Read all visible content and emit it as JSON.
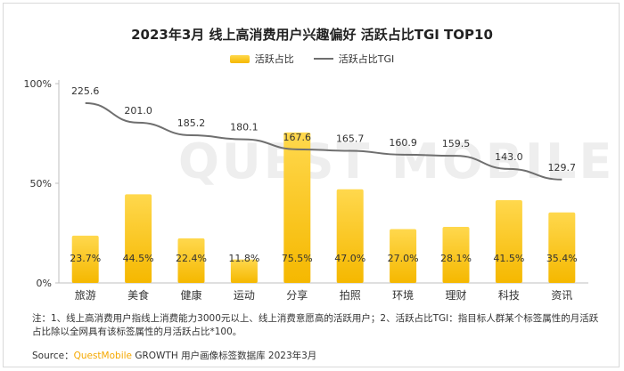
{
  "title": "2023年3月 线上高消费用户兴趣偏好 活跃占比TGI TOP10",
  "watermark": "QUEST MOBILE",
  "legend": {
    "bar_label": "活跃占比",
    "line_label": "活跃占比TGI"
  },
  "note": "注：1、线上高消费用户指线上消费能力3000元以上、线上消费意愿高的活跃用户；2、活跃占比TGI：指目标人群某个标签属性的月活跃占比除以全网具有该标签属性的月活跃占比*100。",
  "source": {
    "prefix": "Source：",
    "brand": "QuestMobile",
    "text": " GROWTH 用户画像标签数据库 2023年3月"
  },
  "colors": {
    "bar_top": "#ffd84d",
    "bar_bottom": "#f5b800",
    "line": "#6f6f6f",
    "axis": "#bfbfbf"
  },
  "chart_data": {
    "type": "bar",
    "categories": [
      "旅游",
      "美食",
      "健康",
      "运动",
      "分享",
      "拍照",
      "环境",
      "理财",
      "科技",
      "资讯"
    ],
    "series": [
      {
        "name": "活跃占比",
        "type": "bar",
        "values": [
          23.7,
          44.5,
          22.4,
          11.8,
          75.5,
          47.0,
          27.0,
          28.1,
          41.5,
          35.4
        ],
        "labels": [
          "23.7%",
          "44.5%",
          "22.4%",
          "11.8%",
          "75.5%",
          "47.0%",
          "27.0%",
          "28.1%",
          "41.5%",
          "35.4%"
        ]
      },
      {
        "name": "活跃占比TGI",
        "type": "line",
        "values": [
          225.6,
          201.0,
          185.2,
          180.1,
          167.6,
          165.7,
          160.9,
          159.5,
          143.0,
          129.7
        ],
        "labels": [
          "225.6",
          "201.0",
          "185.2",
          "180.1",
          "167.6",
          "165.7",
          "160.9",
          "159.5",
          "143.0",
          "129.7"
        ]
      }
    ],
    "y_ticks": [
      "0%",
      "50%",
      "100%"
    ],
    "ylim": [
      0,
      100
    ],
    "tgi_range": [
      0,
      250
    ],
    "legend_position": "top-center",
    "grid": false
  }
}
